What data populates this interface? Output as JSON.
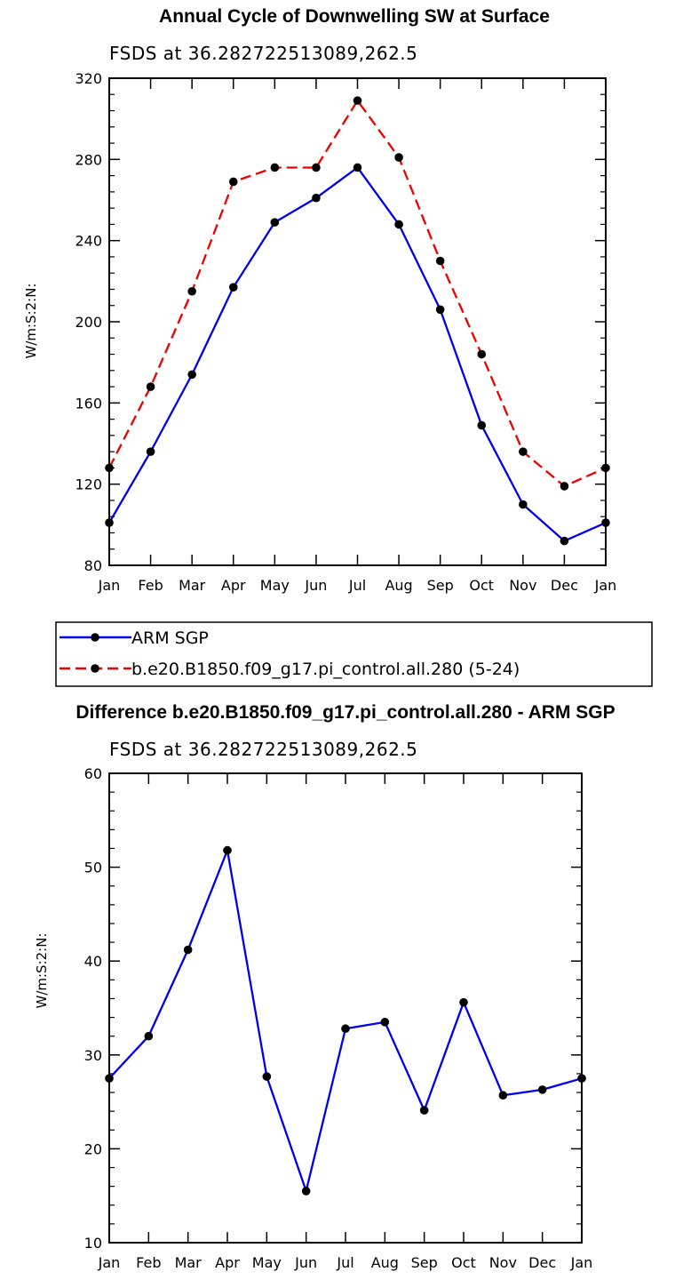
{
  "chart_data": [
    {
      "type": "line",
      "title": "Annual Cycle of Downwelling SW at Surface",
      "subtitle": "FSDS at 36.282722513089,262.5",
      "ylabel": "W/m:S:2:N:",
      "xlabel": "",
      "categories": [
        "Jan",
        "Feb",
        "Mar",
        "Apr",
        "May",
        "Jun",
        "Jul",
        "Aug",
        "Sep",
        "Oct",
        "Nov",
        "Dec",
        "Jan"
      ],
      "ylim": [
        80,
        320
      ],
      "yticks": [
        80,
        120,
        160,
        200,
        240,
        280,
        320
      ],
      "ytick_labels": [
        "80",
        "120",
        "160",
        "200",
        "240",
        "280",
        "320"
      ],
      "series": [
        {
          "name": "ARM SGP",
          "color": "#0000ee",
          "dash": "solid",
          "values": [
            101,
            136,
            174,
            217,
            249,
            261,
            276,
            248,
            206,
            149,
            110,
            92,
            101
          ]
        },
        {
          "name": "b.e20.B1850.f09_g17.pi_control.all.280 (5-24)",
          "color": "#ee0000",
          "dash": "dashed",
          "values": [
            128,
            168,
            215,
            269,
            276,
            276,
            309,
            281,
            230,
            184,
            136,
            119,
            128
          ]
        }
      ],
      "legend": {
        "placement": "below"
      }
    },
    {
      "type": "line",
      "title": "Difference b.e20.B1850.f09_g17.pi_control.all.280 - ARM SGP",
      "subtitle": "FSDS at 36.282722513089,262.5",
      "ylabel": "W/m:S:2:N:",
      "xlabel": "",
      "categories": [
        "Jan",
        "Feb",
        "Mar",
        "Apr",
        "May",
        "Jun",
        "Jul",
        "Aug",
        "Sep",
        "Oct",
        "Nov",
        "Dec",
        "Jan"
      ],
      "ylim": [
        10,
        60
      ],
      "yticks": [
        10,
        20,
        30,
        40,
        50,
        60
      ],
      "ytick_labels": [
        "10",
        "20",
        "30",
        "40",
        "50",
        "60"
      ],
      "series": [
        {
          "name": "difference",
          "color": "#0000ee",
          "dash": "solid",
          "values": [
            27.5,
            32.0,
            41.2,
            51.8,
            27.7,
            15.5,
            32.8,
            33.5,
            24.1,
            35.6,
            25.7,
            26.3,
            27.5
          ]
        }
      ]
    }
  ]
}
